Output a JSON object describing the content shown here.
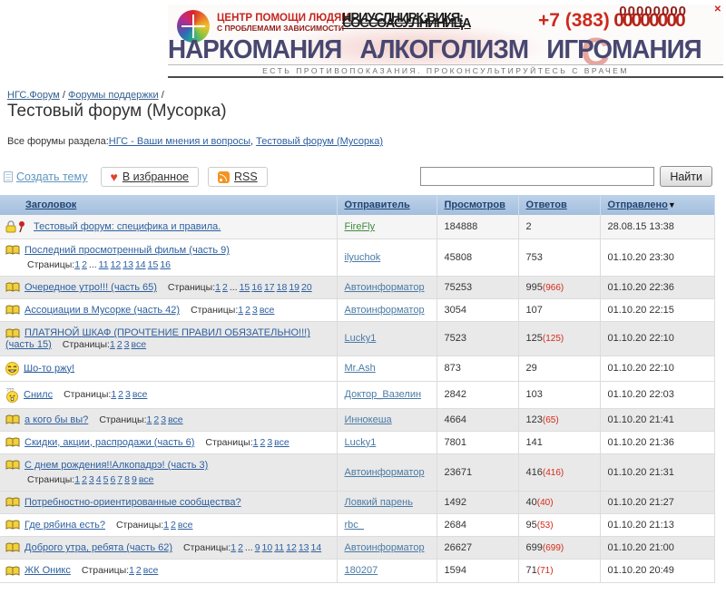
{
  "banner": {
    "org_line1": "ЦЕНТР ПОМОЩИ ЛЮДЯМ",
    "org_line2": "С ПРОБЛЕМАМИ ЗАВИСИМОСТИ",
    "garbled_line1": "НРИУСЛНИРК:ВИКЯ:",
    "garbled_line2": "СОССОАСУ.ЛНИНИЦА",
    "phone_prefix": "+7 (383)",
    "phone_digits": "00000000",
    "phone_digits_overlay": "00000000",
    "title_words": [
      "НАРКОМАНИЯ",
      "АЛКОГОЛИЗМ",
      "ИГРОМАНИЯ"
    ],
    "disclaimer": "ЕСТЬ ПРОТИВОПОКАЗАНИЯ. ПРОКОНСУЛЬТИРУЙТЕСЬ С ВРАЧЕМ",
    "watermark": "С",
    "close_label": "✕"
  },
  "breadcrumb": {
    "items": [
      "НГС.Форум",
      "Форумы поддержки"
    ],
    "separator": "/"
  },
  "page_title": "Тестовый форум (Мусорка)",
  "section": {
    "label": "Все форумы раздела:",
    "links": [
      "НГС - Ваши мнения и вопросы",
      "Тестовый форум (Мусорка)"
    ],
    "comma": ", "
  },
  "toolbar": {
    "create_label": "Создать тему",
    "favorite_label": "В избранное",
    "rss_label": "RSS",
    "heart_glyph": "♥",
    "search_value": "",
    "search_button": "Найти"
  },
  "table": {
    "headers": [
      "Заголовок",
      "Отправитель",
      "Просмотров",
      "Ответов",
      "Отправлено"
    ],
    "sort_arrow": "▼",
    "pages_label": "Страницы:",
    "rows": [
      {
        "icon": "lockpin",
        "title": "Тестовый форум: специфика и правила.",
        "pages": [],
        "pages_newline": false,
        "sender": "FireFly",
        "sender_green": true,
        "views": "184888",
        "replies": "2",
        "replies_new": "",
        "sent": "28.08.15 13:38",
        "shaded": false,
        "first": true
      },
      {
        "icon": "book",
        "title": "Последний просмотренный фильм (часть 9)",
        "pages": [
          "1",
          "2",
          "...",
          "11",
          "12",
          "13",
          "14",
          "15",
          "16"
        ],
        "pages_newline": true,
        "sender": "ilyuchok",
        "sender_green": false,
        "views": "45808",
        "replies": "753",
        "replies_new": "",
        "sent": "01.10.20 23:30",
        "shaded": false,
        "first": false
      },
      {
        "icon": "book",
        "title": "Очередное утро!!! (часть 65)",
        "pages": [
          "1",
          "2",
          "...",
          "15",
          "16",
          "17",
          "18",
          "19",
          "20"
        ],
        "pages_newline": false,
        "sender": "Автоинформатор",
        "sender_green": false,
        "views": "75253",
        "replies": "995",
        "replies_new": "966",
        "sent": "01.10.20 22:36",
        "shaded": true,
        "first": false
      },
      {
        "icon": "book",
        "title": "Ассоциации в Мусорке (часть 42)",
        "pages": [
          "1",
          "2",
          "3",
          "все"
        ],
        "pages_newline": false,
        "sender": "Автоинформатор",
        "sender_green": false,
        "views": "3054",
        "replies": "107",
        "replies_new": "",
        "sent": "01.10.20 22:15",
        "shaded": false,
        "first": false
      },
      {
        "icon": "book",
        "title": "ПЛАТЯНОЙ ШКАФ (ПРОЧТЕНИЕ ПРАВИЛ ОБЯЗАТЕЛЬНО!!!) (часть 15)",
        "pages": [
          "1",
          "2",
          "3",
          "все"
        ],
        "pages_newline": false,
        "sender": "Lucky1",
        "sender_green": false,
        "views": "7523",
        "replies": "125",
        "replies_new": "125",
        "sent": "01.10.20 22:10",
        "shaded": true,
        "first": false
      },
      {
        "icon": "laugh",
        "title": "Шо-то ржу!",
        "pages": [],
        "pages_newline": false,
        "sender": "Mr.Ash",
        "sender_green": false,
        "views": "873",
        "replies": "29",
        "replies_new": "",
        "sent": "01.10.20 22:10",
        "shaded": false,
        "first": false
      },
      {
        "icon": "confused",
        "title": "Снилс",
        "pages": [
          "1",
          "2",
          "3",
          "все"
        ],
        "pages_newline": false,
        "sender": "Доктор_Вазелин",
        "sender_green": false,
        "views": "2842",
        "replies": "103",
        "replies_new": "",
        "sent": "01.10.20 22:03",
        "shaded": false,
        "first": false
      },
      {
        "icon": "book",
        "title": "а кого бы вы?",
        "pages": [
          "1",
          "2",
          "3",
          "все"
        ],
        "pages_newline": false,
        "sender": "Иннокеша",
        "sender_green": false,
        "views": "4664",
        "replies": "123",
        "replies_new": "65",
        "sent": "01.10.20 21:41",
        "shaded": true,
        "first": false
      },
      {
        "icon": "book",
        "title": "Скидки, акции, распродажи (часть 6)",
        "pages": [
          "1",
          "2",
          "3",
          "все"
        ],
        "pages_newline": false,
        "sender": "Lucky1",
        "sender_green": false,
        "views": "7801",
        "replies": "141",
        "replies_new": "",
        "sent": "01.10.20 21:36",
        "shaded": false,
        "first": false
      },
      {
        "icon": "book",
        "title": "С днем рождения!!Алкопадрэ! (часть 3)",
        "pages": [
          "1",
          "2",
          "3",
          "4",
          "5",
          "6",
          "7",
          "8",
          "9",
          "все"
        ],
        "pages_newline": true,
        "sender": "Автоинформатор",
        "sender_green": false,
        "views": "23671",
        "replies": "416",
        "replies_new": "416",
        "sent": "01.10.20 21:31",
        "shaded": true,
        "first": false
      },
      {
        "icon": "book",
        "title": "Потребностно-ориентированные сообщества?",
        "pages": [],
        "pages_newline": false,
        "sender": "Ловкий парень",
        "sender_green": false,
        "views": "1492",
        "replies": "40",
        "replies_new": "40",
        "sent": "01.10.20 21:27",
        "shaded": true,
        "first": false
      },
      {
        "icon": "book",
        "title": "Где рябина есть?",
        "pages": [
          "1",
          "2",
          "все"
        ],
        "pages_newline": false,
        "sender": "rbc_",
        "sender_green": false,
        "views": "2684",
        "replies": "95",
        "replies_new": "53",
        "sent": "01.10.20 21:13",
        "shaded": false,
        "first": false
      },
      {
        "icon": "book",
        "title": "Доброго утра, ребята (часть 62)",
        "pages": [
          "1",
          "2",
          "...",
          "9",
          "10",
          "11",
          "12",
          "13",
          "14"
        ],
        "pages_newline": false,
        "sender": "Автоинформатор",
        "sender_green": false,
        "views": "26627",
        "replies": "699",
        "replies_new": "699",
        "sent": "01.10.20 21:00",
        "shaded": true,
        "first": false
      },
      {
        "icon": "book",
        "title": "ЖК Оникс",
        "pages": [
          "1",
          "2",
          "все"
        ],
        "pages_newline": false,
        "sender": "180207",
        "sender_green": false,
        "views": "1594",
        "replies": "71",
        "replies_new": "71",
        "sent": "01.10.20 20:49",
        "shaded": false,
        "first": false
      }
    ]
  },
  "colors": {
    "header_bg": "#aac5e2",
    "link_blue": "#2d5f9f",
    "sender_blue": "#4a7ba6",
    "sender_green": "#3f8c3f",
    "new_replies_red": "#d42a1a",
    "banner_title_navy": "#474770",
    "phone_red": "#cc2a1e"
  }
}
